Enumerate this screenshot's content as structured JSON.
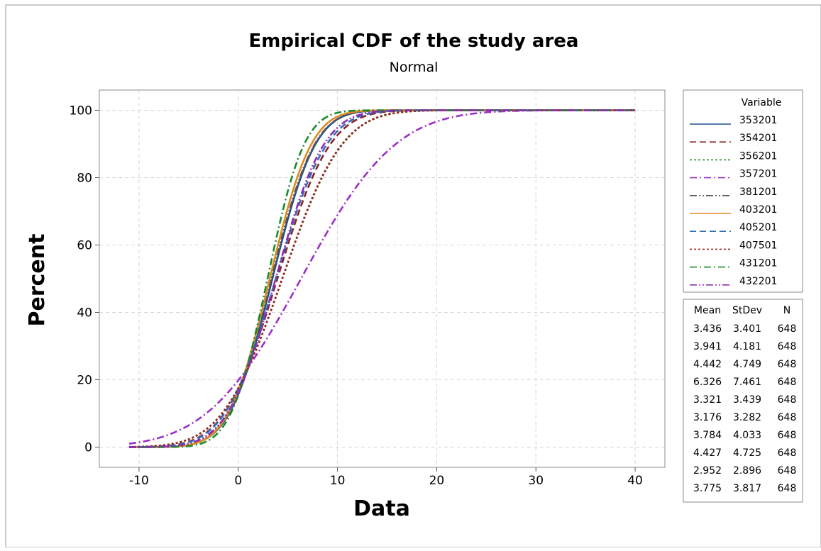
{
  "chart_data": {
    "type": "line",
    "title": "Empirical CDF of the study area",
    "subtitle": "Normal",
    "xlabel": "Data",
    "ylabel": "Percent",
    "xlim": [
      -14,
      43
    ],
    "ylim": [
      -6,
      106
    ],
    "xticks": [
      -10,
      0,
      10,
      20,
      30,
      40
    ],
    "yticks": [
      0,
      20,
      40,
      60,
      80,
      100
    ],
    "grid": true,
    "legend": {
      "title": "Variable",
      "placement": "right"
    },
    "stats_header": [
      "Mean",
      "StDev",
      "N"
    ],
    "series": [
      {
        "name": "353201",
        "mean": 3.436,
        "stdev": 3.401,
        "n": 648,
        "color": "#1f4e8c",
        "dash": "solid"
      },
      {
        "name": "354201",
        "mean": 3.941,
        "stdev": 4.181,
        "n": 648,
        "color": "#8b2323",
        "dash": "dashed"
      },
      {
        "name": "356201",
        "mean": 4.442,
        "stdev": 4.749,
        "n": 648,
        "color": "#2e8b2e",
        "dash": "dotted"
      },
      {
        "name": "357201",
        "mean": 6.326,
        "stdev": 7.461,
        "n": 648,
        "color": "#9b30c8",
        "dash": "dashdot"
      },
      {
        "name": "381201",
        "mean": 3.321,
        "stdev": 3.439,
        "n": 648,
        "color": "#555555",
        "dash": "dashdotdot"
      },
      {
        "name": "403201",
        "mean": 3.176,
        "stdev": 3.282,
        "n": 648,
        "color": "#e08a1e",
        "dash": "solid"
      },
      {
        "name": "405201",
        "mean": 3.784,
        "stdev": 4.033,
        "n": 648,
        "color": "#2f6fb5",
        "dash": "dashed"
      },
      {
        "name": "407501",
        "mean": 4.427,
        "stdev": 4.725,
        "n": 648,
        "color": "#a0221f",
        "dash": "dotted"
      },
      {
        "name": "431201",
        "mean": 2.952,
        "stdev": 2.896,
        "n": 648,
        "color": "#1a8a2a",
        "dash": "dashdot"
      },
      {
        "name": "432201",
        "mean": 3.775,
        "stdev": 3.817,
        "n": 648,
        "color": "#8e2ab8",
        "dash": "dashdotdot"
      }
    ]
  }
}
